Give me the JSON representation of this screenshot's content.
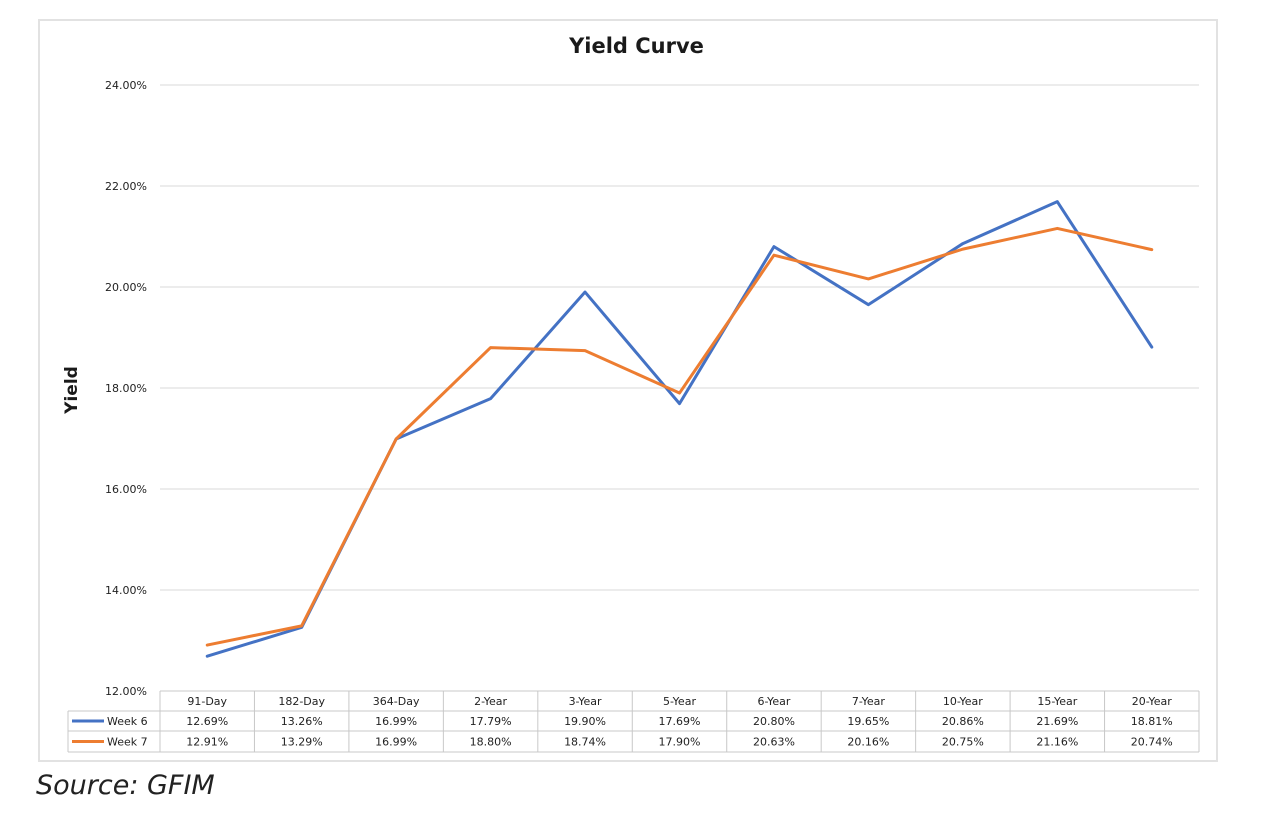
{
  "chart_data": {
    "type": "line",
    "title": "Yield Curve",
    "xlabel": "",
    "ylabel": "Yield",
    "ylim": [
      12,
      24
    ],
    "y_tick_labels": [
      "12.00%",
      "14.00%",
      "16.00%",
      "18.00%",
      "20.00%",
      "22.00%",
      "24.00%"
    ],
    "y_ticks": [
      12,
      14,
      16,
      18,
      20,
      22,
      24
    ],
    "grid": true,
    "legend": "data-table",
    "categories": [
      "91-Day",
      "182-Day",
      "364-Day",
      "2-Year",
      "3-Year",
      "5-Year",
      "6-Year",
      "7-Year",
      "10-Year",
      "15-Year",
      "20-Year"
    ],
    "series": [
      {
        "name": "Week 6",
        "color": "#4472C4",
        "values": [
          12.69,
          13.26,
          16.99,
          17.79,
          19.9,
          17.69,
          20.8,
          19.65,
          20.86,
          21.69,
          18.81
        ],
        "labels": [
          "12.69%",
          "13.26%",
          "16.99%",
          "17.79%",
          "19.90%",
          "17.69%",
          "20.80%",
          "19.65%",
          "20.86%",
          "21.69%",
          "18.81%"
        ]
      },
      {
        "name": "Week 7",
        "color": "#ED7D31",
        "values": [
          12.91,
          13.29,
          16.99,
          18.8,
          18.74,
          17.9,
          20.63,
          20.16,
          20.75,
          21.16,
          20.74
        ],
        "labels": [
          "12.91%",
          "13.29%",
          "16.99%",
          "18.80%",
          "18.74%",
          "17.90%",
          "20.63%",
          "20.16%",
          "20.75%",
          "21.16%",
          "20.74%"
        ]
      }
    ]
  },
  "source": "Source: GFIM"
}
